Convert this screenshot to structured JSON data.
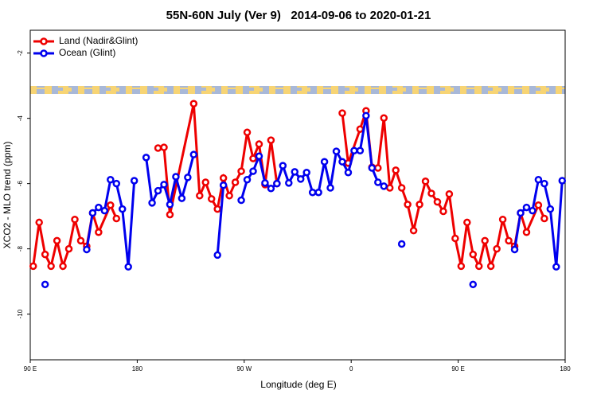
{
  "chart_data": {
    "type": "line",
    "title": "55N-60N July (Ver 9)   2014-09-06 to 2020-01-21",
    "x_label": "Longitude (deg E)",
    "y_label": "XCO2 - MLO trend (ppm)",
    "xlim": [
      90,
      540
    ],
    "xticks": [
      {
        "value": 90,
        "label": "90 E"
      },
      {
        "value": 180,
        "label": "180"
      },
      {
        "value": 270,
        "label": "90 W"
      },
      {
        "value": 360,
        "label": "0"
      },
      {
        "value": 450,
        "label": "90 E"
      },
      {
        "value": 540,
        "label": "180"
      }
    ],
    "ylim": [
      -11.4,
      -1.3
    ],
    "yticks": [
      -2,
      -4,
      -6,
      -8,
      -10
    ],
    "legend": "top-left",
    "series": [
      {
        "name": "Land (Nadir&Glint)",
        "color": "#ee0000",
        "x": [
          92.5,
          97.5,
          102.5,
          107.5,
          112.5,
          117.5,
          122.5,
          127.5,
          132.5,
          137.5,
          142.5,
          147.5,
          157.5,
          162.5,
          177.5,
          197.5,
          202.5,
          207.5,
          227.5,
          232.5,
          237.5,
          242.5,
          247.5,
          252.5,
          257.5,
          262.5,
          267.5,
          272.5,
          277.5,
          282.5,
          287.5,
          292.5,
          297.5,
          322.5,
          352.5,
          357.5,
          367.5,
          372.5,
          377.5,
          382.5,
          387.5,
          392.5,
          397.5,
          402.5,
          407.5,
          412.5,
          417.5,
          422.5,
          427.5,
          432.5,
          437.5,
          442.5,
          447.5,
          452.5,
          457.5,
          462.5,
          467.5,
          472.5,
          477.5,
          482.5,
          487.5,
          492.5,
          497.5,
          502.5,
          507.5,
          517.5,
          522.5
        ],
        "values": [
          -8.53,
          -7.19,
          -8.17,
          -8.53,
          -7.75,
          -8.53,
          -8.0,
          -7.1,
          -7.75,
          -7.92,
          -6.9,
          -7.49,
          -6.66,
          -7.07,
          null,
          -4.91,
          -4.89,
          -6.95,
          -3.55,
          -6.37,
          -5.96,
          -6.47,
          -6.78,
          -5.83,
          -6.37,
          -5.96,
          -5.62,
          -4.43,
          -5.23,
          -4.79,
          -6.03,
          -4.67,
          -6.0,
          null,
          -3.84,
          -5.37,
          -4.33,
          -3.77,
          -5.5,
          -5.52,
          -3.99,
          -6.13,
          -5.59,
          -6.13,
          -6.64,
          -7.44,
          -6.64,
          -5.93,
          -6.3,
          -6.56,
          -6.85,
          -6.32,
          -7.68,
          -8.53,
          -7.19,
          -8.17,
          -8.53,
          -7.75,
          -8.53,
          -8.0,
          -7.1,
          -7.75,
          -7.92,
          -6.9,
          -7.49,
          -6.66,
          -7.07
        ]
      },
      {
        "name": "Ocean (Glint)",
        "color": "#0000ee",
        "x": [
          102.5,
          117.5,
          137.5,
          142.5,
          147.5,
          152.5,
          157.5,
          162.5,
          167.5,
          172.5,
          177.5,
          182.5,
          187.5,
          192.5,
          197.5,
          202.5,
          207.5,
          212.5,
          217.5,
          222.5,
          227.5,
          237.5,
          247.5,
          252.5,
          257.5,
          267.5,
          272.5,
          277.5,
          282.5,
          287.5,
          292.5,
          297.5,
          302.5,
          307.5,
          312.5,
          317.5,
          322.5,
          327.5,
          332.5,
          337.5,
          342.5,
          347.5,
          352.5,
          357.5,
          362.5,
          367.5,
          372.5,
          377.5,
          382.5,
          387.5,
          392.5,
          402.5,
          417.5,
          462.5,
          482.5,
          497.5,
          502.5,
          507.5,
          512.5,
          517.5,
          522.5,
          527.5,
          532.5,
          537.5
        ],
        "values": [
          -9.09,
          null,
          -8.02,
          -6.9,
          -6.73,
          -6.83,
          -5.88,
          -6.0,
          -6.78,
          -8.55,
          -5.91,
          null,
          -5.2,
          -6.59,
          -6.22,
          -6.03,
          -6.64,
          -5.79,
          -6.45,
          -5.81,
          -5.11,
          null,
          -8.19,
          -6.05,
          null,
          -6.51,
          -5.88,
          -5.62,
          -5.16,
          -5.98,
          -6.15,
          -6.0,
          -5.45,
          -5.98,
          -5.64,
          -5.86,
          -5.66,
          -6.27,
          -6.27,
          -5.33,
          -6.13,
          -5.01,
          -5.33,
          -5.66,
          -4.99,
          -4.99,
          -3.92,
          -5.52,
          -5.96,
          -6.08,
          null,
          -7.85,
          null,
          -9.09,
          null,
          -8.02,
          -6.9,
          -6.73,
          -6.83,
          -5.88,
          -6.0,
          -6.78,
          -8.55,
          -5.91
        ]
      }
    ]
  }
}
